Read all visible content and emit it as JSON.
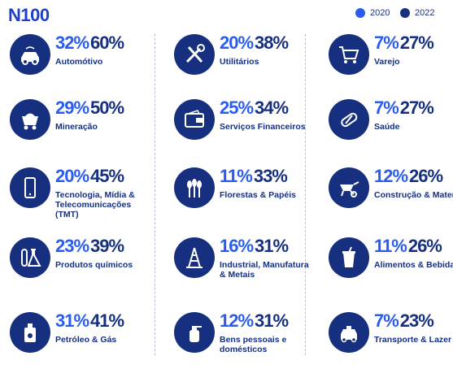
{
  "title": "N100",
  "legend": [
    {
      "label": "2020",
      "color": "#2a5cf0"
    },
    {
      "label": "2022",
      "color": "#16307f"
    }
  ],
  "chart_data": {
    "type": "table",
    "title": "N100",
    "series_names": [
      "2020",
      "2022"
    ],
    "categories": [
      {
        "label": "Automótivo",
        "values": [
          "32%",
          "60%"
        ],
        "icon": "car-icon"
      },
      {
        "label": "Mineração",
        "values": [
          "29%",
          "50%"
        ],
        "icon": "mine-cart-icon"
      },
      {
        "label": "Tecnologia, Mídia & Telecomunicações (TMT)",
        "values": [
          "20%",
          "45%"
        ],
        "icon": "smartphone-icon"
      },
      {
        "label": "Produtos químicos",
        "values": [
          "23%",
          "39%"
        ],
        "icon": "chemistry-flask-icon"
      },
      {
        "label": "Petróleo & Gás",
        "values": [
          "31%",
          "41%"
        ],
        "icon": "oil-can-icon"
      },
      {
        "label": "Utilitários",
        "values": [
          "20%",
          "38%"
        ],
        "icon": "wrench-tools-icon"
      },
      {
        "label": "Serviços Financeiros",
        "values": [
          "25%",
          "34%"
        ],
        "icon": "wallet-icon"
      },
      {
        "label": "Florestas & Papéis",
        "values": [
          "11%",
          "33%"
        ],
        "icon": "wheat-icon"
      },
      {
        "label": "Industrial, Manufatura & Metais",
        "values": [
          "16%",
          "31%"
        ],
        "icon": "oil-rig-icon"
      },
      {
        "label": "Bens pessoais e domésticos",
        "values": [
          "12%",
          "31%"
        ],
        "icon": "spray-bottle-icon"
      },
      {
        "label": "Varejo",
        "values": [
          "7%",
          "27%"
        ],
        "icon": "shopping-cart-icon"
      },
      {
        "label": "Saúde",
        "values": [
          "7%",
          "27%"
        ],
        "icon": "pill-icon"
      },
      {
        "label": "Construção & Materiais",
        "values": [
          "12%",
          "26%"
        ],
        "icon": "wheelbarrow-icon"
      },
      {
        "label": "Alimentos & Bebidas",
        "values": [
          "11%",
          "26%"
        ],
        "icon": "drink-cup-icon"
      },
      {
        "label": "Transporte & Lazer",
        "values": [
          "7%",
          "23%"
        ],
        "icon": "taxi-icon"
      }
    ]
  }
}
